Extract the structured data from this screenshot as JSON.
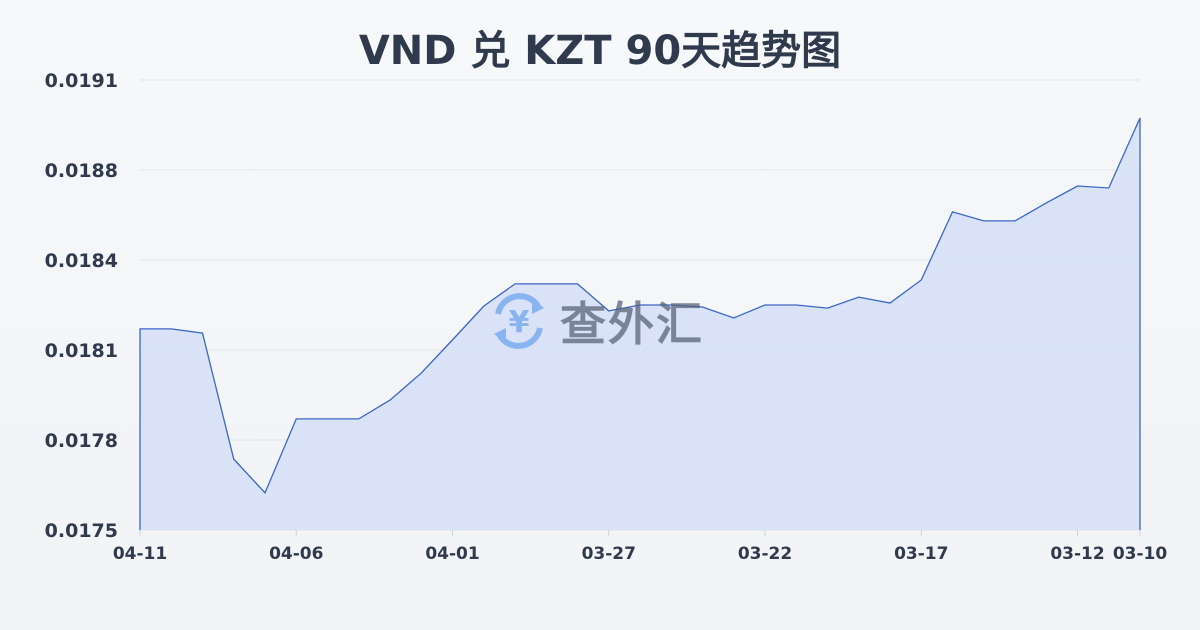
{
  "chart_data": {
    "type": "area",
    "title": "VND 兑 KZT 90天趋势图",
    "xlabel": "",
    "ylabel": "",
    "ylim": [
      0.0175,
      0.0191
    ],
    "yticks": [
      "0.0175",
      "0.0178",
      "0.0181",
      "0.0184",
      "0.0188",
      "0.0191"
    ],
    "xtick_labels": [
      "04-11",
      "04-06",
      "04-01",
      "03-27",
      "03-22",
      "03-17",
      "03-12",
      "03-10"
    ],
    "grid": true,
    "x": [
      "04-11",
      "04-10",
      "04-09",
      "04-08",
      "04-07",
      "04-06",
      "04-05",
      "04-04",
      "04-03",
      "04-02",
      "04-01",
      "03-31",
      "03-30",
      "03-29",
      "03-28",
      "03-27",
      "03-26",
      "03-25",
      "03-24",
      "03-23",
      "03-22",
      "03-21",
      "03-20",
      "03-19",
      "03-18",
      "03-17",
      "03-16",
      "03-15",
      "03-14",
      "03-13",
      "03-12",
      "03-11",
      "03-10"
    ],
    "values": [
      0.018215,
      0.018215,
      0.0182,
      0.017752,
      0.017632,
      0.017895,
      0.017895,
      0.017895,
      0.017962,
      0.018058,
      0.018176,
      0.018296,
      0.018375,
      0.018375,
      0.018375,
      0.018279,
      0.0183,
      0.0183,
      0.018293,
      0.018254,
      0.0183,
      0.0183,
      0.018289,
      0.018328,
      0.018307,
      0.018389,
      0.018631,
      0.018599,
      0.018599,
      0.018663,
      0.018723,
      0.018716,
      0.018965
    ],
    "line_color": "#3a66c8",
    "fill_color": "#d6e0f5"
  },
  "watermark": {
    "text": "查外汇",
    "icon": "yen-exchange-icon",
    "icon_color": "#8ab4f0"
  }
}
